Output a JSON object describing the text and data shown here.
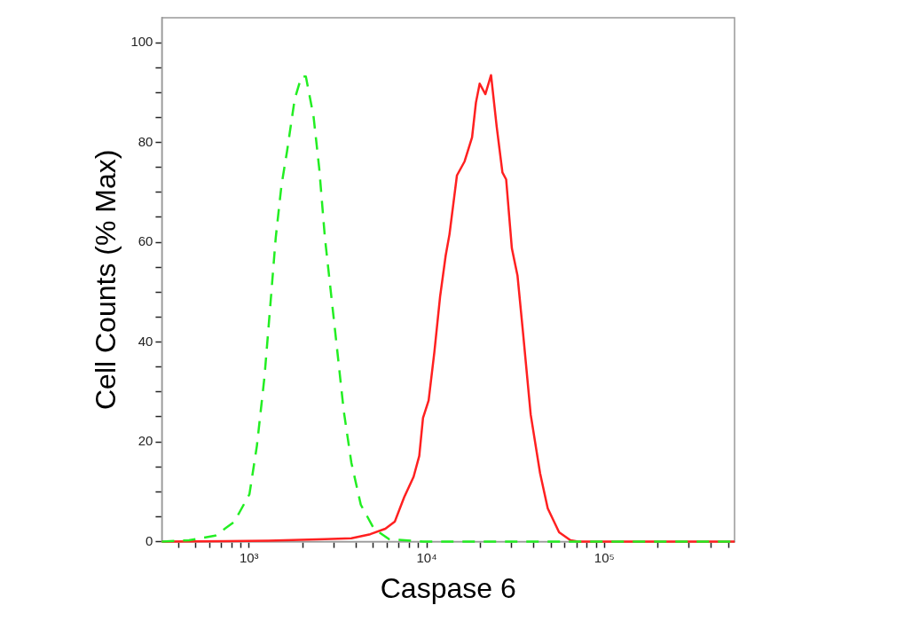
{
  "chart_data": {
    "type": "line",
    "xlabel": "Caspase 6",
    "ylabel": "Cell Counts (% Max)",
    "log": "x",
    "grid": false,
    "legend": false,
    "marker": "none",
    "xlim": [
      323,
      540000
    ],
    "ylim": [
      0,
      105
    ],
    "xticks": [
      {
        "value": 400,
        "label": null
      },
      {
        "value": 500,
        "label": null
      },
      {
        "value": 600,
        "label": null
      },
      {
        "value": 700,
        "label": null
      },
      {
        "value": 800,
        "label": null
      },
      {
        "value": 900,
        "label": null
      },
      {
        "value": 1000,
        "label": "10³"
      },
      {
        "value": 2000,
        "label": null
      },
      {
        "value": 3000,
        "label": null
      },
      {
        "value": 4000,
        "label": null
      },
      {
        "value": 5000,
        "label": null
      },
      {
        "value": 6000,
        "label": null
      },
      {
        "value": 7000,
        "label": null
      },
      {
        "value": 8000,
        "label": null
      },
      {
        "value": 9000,
        "label": null
      },
      {
        "value": 10000,
        "label": "10⁴"
      },
      {
        "value": 20000,
        "label": null
      },
      {
        "value": 30000,
        "label": null
      },
      {
        "value": 40000,
        "label": null
      },
      {
        "value": 50000,
        "label": null
      },
      {
        "value": 60000,
        "label": null
      },
      {
        "value": 70000,
        "label": null
      },
      {
        "value": 80000,
        "label": null
      },
      {
        "value": 90000,
        "label": null
      },
      {
        "value": 100000,
        "label": "10⁵"
      },
      {
        "value": 200000,
        "label": null
      },
      {
        "value": 300000,
        "label": null
      },
      {
        "value": 400000,
        "label": null
      },
      {
        "value": 500000,
        "label": null
      }
    ],
    "yticks": [
      0,
      {
        "value": 5,
        "label": null
      },
      {
        "value": 10,
        "label": null
      },
      {
        "value": 15,
        "label": null
      },
      20,
      {
        "value": 25,
        "label": null
      },
      {
        "value": 30,
        "label": null
      },
      {
        "value": 35,
        "label": null
      },
      40,
      {
        "value": 45,
        "label": null
      },
      {
        "value": 50,
        "label": null
      },
      {
        "value": 55,
        "label": null
      },
      60,
      {
        "value": 65,
        "label": null
      },
      {
        "value": 70,
        "label": null
      },
      {
        "value": 75,
        "label": null
      },
      80,
      {
        "value": 85,
        "label": null
      },
      {
        "value": 90,
        "label": null
      },
      {
        "value": 95,
        "label": null
      },
      100
    ],
    "series": [
      {
        "color": "#22ee22",
        "line_style": "dashed",
        "x": [
          323,
          459,
          646,
          826,
          1005,
          1107,
          1222,
          1315,
          1413,
          1521,
          1637,
          1807,
          1972,
          2089,
          2307,
          2483,
          2673,
          2877,
          3097,
          3412,
          3767,
          4256,
          5047,
          6138,
          9528,
          540000
        ],
        "values": [
          0,
          0.3,
          1.2,
          4,
          9.5,
          19.2,
          33.1,
          47,
          60.9,
          71.3,
          78.3,
          88.7,
          93.2,
          93.2,
          85.2,
          74.8,
          60.9,
          50.5,
          40.1,
          26.2,
          15.8,
          7.4,
          2.6,
          0.5,
          0,
          0
        ]
      },
      {
        "color": "#ff2020",
        "line_style": "solid",
        "x": [
          323,
          1282,
          2673,
          3767,
          4808,
          5848,
          6607,
          7464,
          8433,
          9078,
          9528,
          10250,
          11040,
          11890,
          12790,
          13430,
          14790,
          16330,
          17990,
          18920,
          19860,
          21380,
          23010,
          24770,
          26670,
          27990,
          30130,
          32430,
          34910,
          38460,
          43450,
          47970,
          55590,
          64420,
          70960,
          540000
        ],
        "values": [
          0,
          0.2,
          0.5,
          0.7,
          1.5,
          2.6,
          4,
          8.9,
          13,
          17.2,
          24.8,
          28.3,
          38,
          49.1,
          57.4,
          61.6,
          73.4,
          76.2,
          81,
          88,
          91.8,
          89.7,
          93.5,
          83.1,
          74,
          72.6,
          58.8,
          53.3,
          41.5,
          25.5,
          13.7,
          6.7,
          1.9,
          0.3,
          0,
          0
        ]
      }
    ]
  }
}
